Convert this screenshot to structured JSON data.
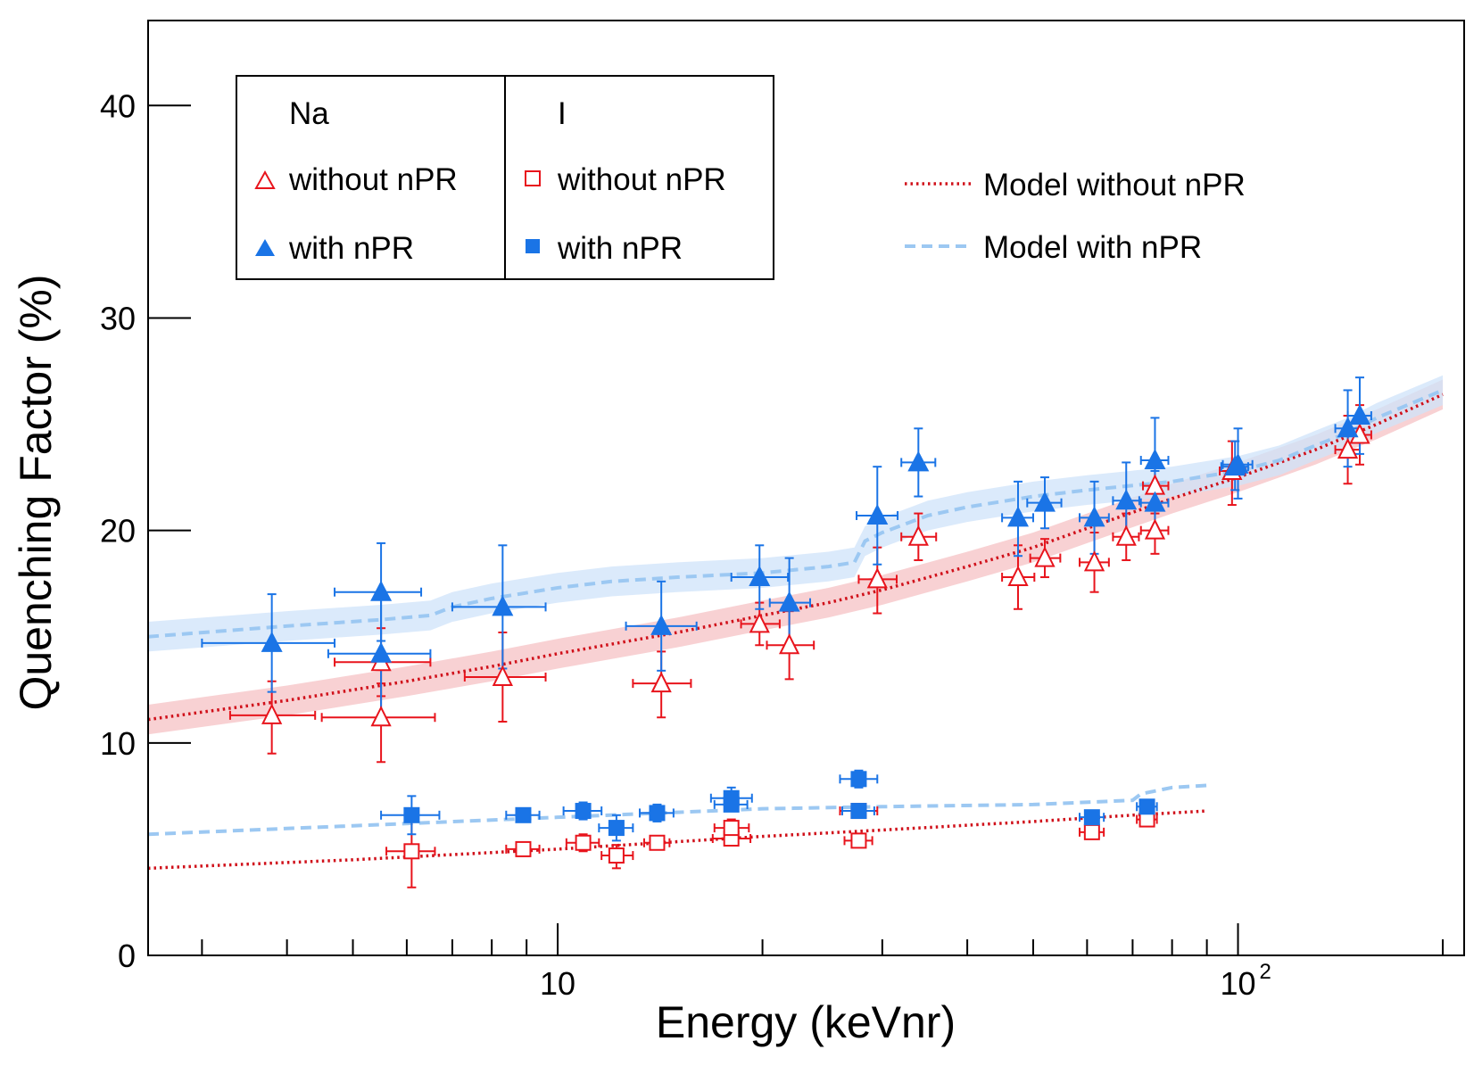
{
  "chart_data": {
    "type": "scatter",
    "title": "",
    "xlabel": "Energy (keVnr)",
    "ylabel": "Quenching Factor (%)",
    "xscale": "log",
    "xlim": [
      2.5,
      215
    ],
    "ylim": [
      0,
      44
    ],
    "yticks": [
      0,
      10,
      20,
      30,
      40
    ],
    "ytick_labels": [
      "0",
      "10",
      "20",
      "30",
      "40"
    ],
    "xtick_labels": [
      {
        "value": 10,
        "label": "10",
        "sup": ""
      },
      {
        "value": 100,
        "label": "10",
        "sup": "2"
      }
    ],
    "legend": {
      "headers": [
        "Na",
        "I"
      ],
      "na_without": "without nPR",
      "na_with": "with nPR",
      "i_without": "without nPR",
      "i_with": "with nPR",
      "model_without": "Model without nPR",
      "model_with": "Model with nPR"
    },
    "colors": {
      "red": "#e8141c",
      "blue": "#1a74e6",
      "model_red": "#d0101a",
      "model_blue": "#9cc8f2",
      "band_red": "#f6c2c4",
      "band_blue": "#cfe3f9"
    },
    "series": [
      {
        "name": "Na without nPR",
        "marker": "triangle-open",
        "color": "#e8141c",
        "points": [
          {
            "x": 3.8,
            "y": 11.3,
            "xlo": 3.3,
            "xhi": 4.4,
            "ylo": 9.5,
            "yhi": 12.9
          },
          {
            "x": 5.5,
            "y": 11.2,
            "xlo": 4.5,
            "xhi": 6.6,
            "ylo": 9.1,
            "yhi": 12.8
          },
          {
            "x": 5.5,
            "y": 13.8,
            "xlo": 4.7,
            "xhi": 6.5,
            "ylo": 12.2,
            "yhi": 15.4
          },
          {
            "x": 8.3,
            "y": 13.1,
            "xlo": 7.3,
            "xhi": 9.6,
            "ylo": 11.0,
            "yhi": 15.2
          },
          {
            "x": 14.2,
            "y": 12.8,
            "xlo": 12.9,
            "xhi": 15.7,
            "ylo": 11.2,
            "yhi": 14.3
          },
          {
            "x": 19.8,
            "y": 15.6,
            "xlo": 18.6,
            "xhi": 21.2,
            "ylo": 14.6,
            "yhi": 16.6
          },
          {
            "x": 21.9,
            "y": 14.6,
            "xlo": 20.3,
            "xhi": 23.8,
            "ylo": 13.0,
            "yhi": 16.2
          },
          {
            "x": 29.5,
            "y": 17.7,
            "xlo": 27.7,
            "xhi": 31.5,
            "ylo": 16.1,
            "yhi": 19.2
          },
          {
            "x": 33.9,
            "y": 19.7,
            "xlo": 32.0,
            "xhi": 36.0,
            "ylo": 18.6,
            "yhi": 20.8
          },
          {
            "x": 47.5,
            "y": 17.8,
            "xlo": 45.0,
            "xhi": 50.2,
            "ylo": 16.3,
            "yhi": 19.3
          },
          {
            "x": 52.0,
            "y": 18.7,
            "xlo": 49.5,
            "xhi": 54.8,
            "ylo": 17.8,
            "yhi": 19.6
          },
          {
            "x": 61.5,
            "y": 18.5,
            "xlo": 58.5,
            "xhi": 64.6,
            "ylo": 17.1,
            "yhi": 19.9
          },
          {
            "x": 68.5,
            "y": 19.7,
            "xlo": 65.5,
            "xhi": 71.5,
            "ylo": 18.6,
            "yhi": 20.8
          },
          {
            "x": 75.5,
            "y": 20.0,
            "xlo": 72.0,
            "xhi": 79.0,
            "ylo": 18.9,
            "yhi": 21.1
          },
          {
            "x": 75.5,
            "y": 22.1,
            "xlo": 72.5,
            "xhi": 79.0,
            "ylo": 20.8,
            "yhi": 23.4
          },
          {
            "x": 98.0,
            "y": 22.8,
            "xlo": 94.0,
            "xhi": 102.5,
            "ylo": 21.2,
            "yhi": 24.2
          },
          {
            "x": 145.0,
            "y": 23.8,
            "xlo": 139.0,
            "xhi": 151.0,
            "ylo": 22.2,
            "yhi": 25.4
          },
          {
            "x": 151.0,
            "y": 24.5,
            "xlo": 145.0,
            "xhi": 157.0,
            "ylo": 23.1,
            "yhi": 25.9
          }
        ]
      },
      {
        "name": "Na with nPR",
        "marker": "triangle-filled",
        "color": "#1a74e6",
        "points": [
          {
            "x": 3.8,
            "y": 14.7,
            "xlo": 3.0,
            "xhi": 4.7,
            "ylo": 12.4,
            "yhi": 17.0
          },
          {
            "x": 5.5,
            "y": 14.2,
            "xlo": 4.6,
            "xhi": 6.5,
            "ylo": 11.3,
            "yhi": 17.0
          },
          {
            "x": 5.5,
            "y": 17.1,
            "xlo": 4.7,
            "xhi": 6.3,
            "ylo": 14.8,
            "yhi": 19.4
          },
          {
            "x": 8.3,
            "y": 16.4,
            "xlo": 7.0,
            "xhi": 9.6,
            "ylo": 13.5,
            "yhi": 19.3
          },
          {
            "x": 14.2,
            "y": 15.5,
            "xlo": 12.6,
            "xhi": 16.0,
            "ylo": 13.4,
            "yhi": 17.6
          },
          {
            "x": 19.8,
            "y": 17.8,
            "xlo": 18.0,
            "xhi": 21.8,
            "ylo": 16.3,
            "yhi": 19.3
          },
          {
            "x": 21.9,
            "y": 16.6,
            "xlo": 20.5,
            "xhi": 23.5,
            "ylo": 14.6,
            "yhi": 18.7
          },
          {
            "x": 29.5,
            "y": 20.7,
            "xlo": 27.5,
            "xhi": 31.6,
            "ylo": 18.4,
            "yhi": 23.0
          },
          {
            "x": 33.9,
            "y": 23.2,
            "xlo": 32.0,
            "xhi": 35.9,
            "ylo": 21.6,
            "yhi": 24.8
          },
          {
            "x": 47.5,
            "y": 20.6,
            "xlo": 45.0,
            "xhi": 50.0,
            "ylo": 18.8,
            "yhi": 22.3
          },
          {
            "x": 52.0,
            "y": 21.3,
            "xlo": 49.0,
            "xhi": 55.0,
            "ylo": 20.1,
            "yhi": 22.5
          },
          {
            "x": 61.5,
            "y": 20.6,
            "xlo": 58.5,
            "xhi": 64.6,
            "ylo": 18.9,
            "yhi": 22.3
          },
          {
            "x": 68.5,
            "y": 21.4,
            "xlo": 65.5,
            "xhi": 71.6,
            "ylo": 19.6,
            "yhi": 23.2
          },
          {
            "x": 75.5,
            "y": 23.3,
            "xlo": 72.0,
            "xhi": 79.0,
            "ylo": 21.2,
            "yhi": 25.3
          },
          {
            "x": 75.5,
            "y": 21.3,
            "xlo": 72.0,
            "xhi": 79.0,
            "ylo": 19.8,
            "yhi": 22.8
          },
          {
            "x": 100.0,
            "y": 23.1,
            "xlo": 95.0,
            "xhi": 105.0,
            "ylo": 21.5,
            "yhi": 24.8
          },
          {
            "x": 99.0,
            "y": 23.0,
            "xlo": 94.5,
            "xhi": 103.5,
            "ylo": 21.9,
            "yhi": 24.2
          },
          {
            "x": 145.0,
            "y": 24.8,
            "xlo": 139.0,
            "xhi": 151.0,
            "ylo": 23.0,
            "yhi": 26.6
          },
          {
            "x": 151.0,
            "y": 25.4,
            "xlo": 145.0,
            "xhi": 157.0,
            "ylo": 23.6,
            "yhi": 27.2
          }
        ]
      },
      {
        "name": "I without nPR",
        "marker": "square-open",
        "color": "#e8141c",
        "points": [
          {
            "x": 6.1,
            "y": 4.9,
            "xlo": 5.6,
            "xhi": 6.6,
            "ylo": 3.2,
            "yhi": 6.5
          },
          {
            "x": 8.9,
            "y": 5.0,
            "xlo": 8.4,
            "xhi": 9.4,
            "ylo": 4.7,
            "yhi": 5.3
          },
          {
            "x": 10.9,
            "y": 5.3,
            "xlo": 10.3,
            "xhi": 11.5,
            "ylo": 4.9,
            "yhi": 5.7
          },
          {
            "x": 12.2,
            "y": 4.7,
            "xlo": 11.6,
            "xhi": 12.9,
            "ylo": 4.1,
            "yhi": 5.2
          },
          {
            "x": 14.0,
            "y": 5.3,
            "xlo": 13.4,
            "xhi": 14.6,
            "ylo": 5.0,
            "yhi": 5.6
          },
          {
            "x": 18.0,
            "y": 5.5,
            "xlo": 16.9,
            "xhi": 19.2,
            "ylo": 5.2,
            "yhi": 5.8
          },
          {
            "x": 18.0,
            "y": 6.0,
            "xlo": 17.0,
            "xhi": 19.1,
            "ylo": 5.6,
            "yhi": 6.4
          },
          {
            "x": 27.7,
            "y": 5.4,
            "xlo": 26.4,
            "xhi": 29.0,
            "ylo": 5.1,
            "yhi": 5.7
          },
          {
            "x": 27.7,
            "y": 6.8,
            "xlo": 26.0,
            "xhi": 29.5,
            "ylo": 6.6,
            "yhi": 7.0
          },
          {
            "x": 61.0,
            "y": 5.8,
            "xlo": 58.5,
            "xhi": 63.5,
            "ylo": 5.5,
            "yhi": 6.1
          },
          {
            "x": 73.5,
            "y": 6.4,
            "xlo": 71.0,
            "xhi": 76.0,
            "ylo": 6.1,
            "yhi": 6.7
          }
        ]
      },
      {
        "name": "I with nPR",
        "marker": "square-filled",
        "color": "#1a74e6",
        "points": [
          {
            "x": 6.1,
            "y": 6.6,
            "xlo": 5.5,
            "xhi": 6.7,
            "ylo": 5.7,
            "yhi": 7.5
          },
          {
            "x": 8.9,
            "y": 6.6,
            "xlo": 8.4,
            "xhi": 9.4,
            "ylo": 6.3,
            "yhi": 6.9
          },
          {
            "x": 10.9,
            "y": 6.8,
            "xlo": 10.2,
            "xhi": 11.6,
            "ylo": 6.4,
            "yhi": 7.2
          },
          {
            "x": 12.2,
            "y": 6.0,
            "xlo": 11.5,
            "xhi": 12.9,
            "ylo": 5.4,
            "yhi": 6.6
          },
          {
            "x": 14.0,
            "y": 6.7,
            "xlo": 13.2,
            "xhi": 14.8,
            "ylo": 6.3,
            "yhi": 7.1
          },
          {
            "x": 18.0,
            "y": 7.4,
            "xlo": 16.8,
            "xhi": 19.3,
            "ylo": 6.9,
            "yhi": 7.9
          },
          {
            "x": 18.0,
            "y": 7.1,
            "xlo": 17.0,
            "xhi": 19.0,
            "ylo": 6.8,
            "yhi": 7.4
          },
          {
            "x": 27.7,
            "y": 8.3,
            "xlo": 26.0,
            "xhi": 29.5,
            "ylo": 7.9,
            "yhi": 8.7
          },
          {
            "x": 27.7,
            "y": 6.8,
            "xlo": 26.2,
            "xhi": 29.2,
            "ylo": 6.6,
            "yhi": 7.0
          },
          {
            "x": 61.0,
            "y": 6.5,
            "xlo": 58.5,
            "xhi": 63.5,
            "ylo": 6.2,
            "yhi": 6.8
          },
          {
            "x": 73.5,
            "y": 7.0,
            "xlo": 71.0,
            "xhi": 76.0,
            "ylo": 6.7,
            "yhi": 7.3
          }
        ]
      }
    ],
    "models": [
      {
        "name": "Model without nPR (Na)",
        "style": "dotted",
        "color": "#d0101a",
        "band": 0.7,
        "x": [
          2.5,
          4,
          6,
          8,
          10,
          15,
          20,
          25,
          30,
          40,
          50,
          60,
          80,
          100,
          130,
          160,
          200
        ],
        "y": [
          11.1,
          12.0,
          12.9,
          13.6,
          14.2,
          15.2,
          16.0,
          16.6,
          17.2,
          18.3,
          19.2,
          20.1,
          21.5,
          22.5,
          23.8,
          25.0,
          26.4
        ]
      },
      {
        "name": "Model with nPR (Na)",
        "style": "dashed",
        "color": "#9cc8f2",
        "band": 0.7,
        "x": [
          2.5,
          4,
          5.5,
          6.5,
          7.0,
          8,
          10,
          12,
          15,
          20,
          25,
          27.3,
          28.3,
          30,
          35,
          40,
          50,
          60,
          80,
          100,
          115,
          130,
          145,
          160,
          200
        ],
        "y": [
          15.0,
          15.5,
          15.8,
          16.0,
          16.4,
          16.8,
          17.3,
          17.6,
          17.8,
          18.0,
          18.3,
          18.5,
          19.5,
          19.9,
          20.7,
          21.1,
          21.6,
          21.9,
          22.3,
          22.8,
          23.3,
          24.0,
          24.6,
          25.3,
          26.6
        ]
      },
      {
        "name": "Model without nPR (I)",
        "style": "dotted",
        "color": "#d0101a",
        "band": 0,
        "x": [
          2.5,
          5,
          10,
          20,
          30,
          50,
          70,
          90
        ],
        "y": [
          4.1,
          4.5,
          5.0,
          5.6,
          5.9,
          6.3,
          6.6,
          6.8
        ]
      },
      {
        "name": "Model with nPR (I)",
        "style": "dashed",
        "color": "#9cc8f2",
        "band": 0,
        "x": [
          2.5,
          5,
          10,
          20,
          30,
          50,
          70,
          72,
          80,
          90
        ],
        "y": [
          5.7,
          6.1,
          6.5,
          6.9,
          7.0,
          7.1,
          7.3,
          7.6,
          7.9,
          8.0
        ]
      }
    ]
  }
}
